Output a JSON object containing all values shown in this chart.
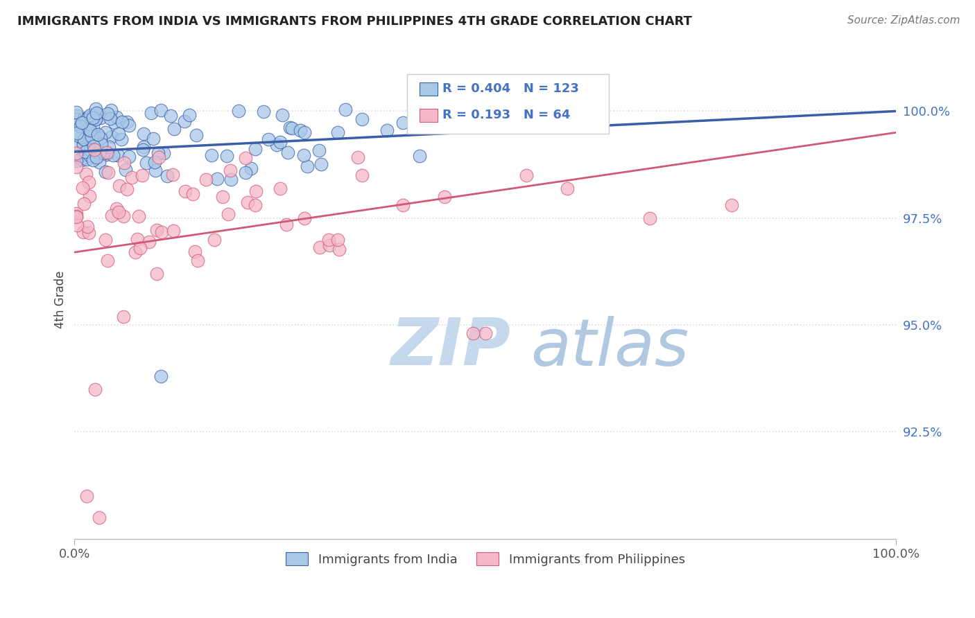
{
  "title": "IMMIGRANTS FROM INDIA VS IMMIGRANTS FROM PHILIPPINES 4TH GRADE CORRELATION CHART",
  "source_text": "Source: ZipAtlas.com",
  "ylabel": "4th Grade",
  "x_min": 0.0,
  "x_max": 100.0,
  "y_min": 90.0,
  "y_max": 101.2,
  "y_ticks": [
    92.5,
    95.0,
    97.5,
    100.0
  ],
  "y_tick_labels": [
    "92.5%",
    "95.0%",
    "97.5%",
    "100.0%"
  ],
  "x_tick_labels": [
    "0.0%",
    "100.0%"
  ],
  "legend_label1": "Immigrants from India",
  "legend_label2": "Immigrants from Philippines",
  "r1": 0.404,
  "n1": 123,
  "r2": 0.193,
  "n2": 64,
  "color_india": "#a8c8e8",
  "color_philippines": "#f4b8c8",
  "line_color_india": "#3a5fa8",
  "line_color_philippines": "#d05878",
  "tick_color": "#4472c4",
  "india_line_start_y": 99.05,
  "india_line_end_y": 100.0,
  "phil_line_start_y": 96.7,
  "phil_line_end_y": 99.5,
  "watermark_zip_color": "#c8d8ee",
  "watermark_atlas_color": "#b8cce0",
  "background_color": "#ffffff",
  "grid_color": "#dddddd"
}
